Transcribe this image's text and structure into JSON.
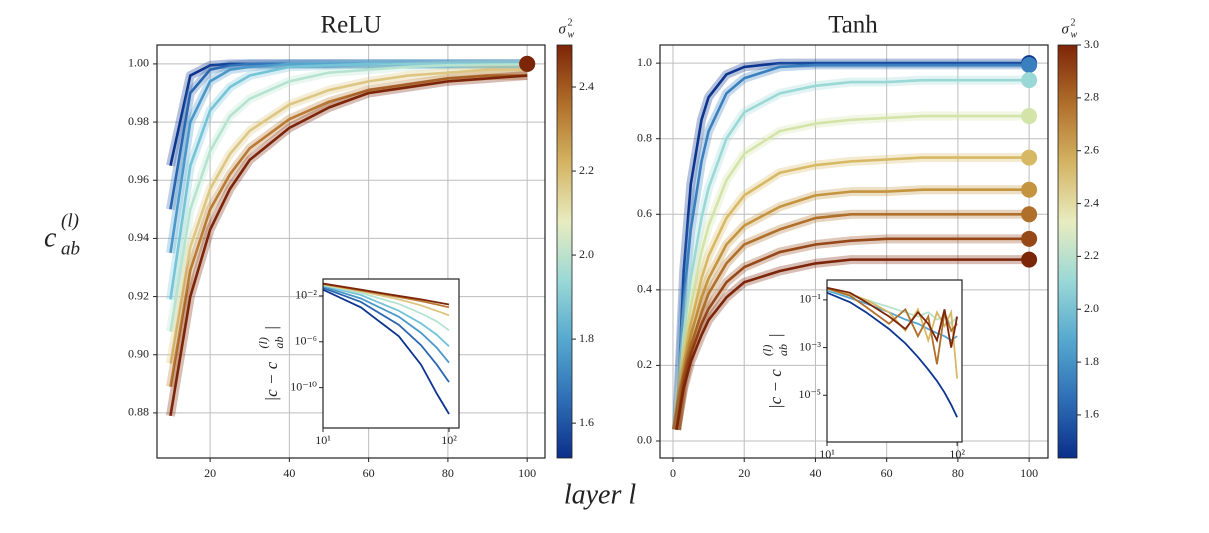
{
  "shared_labels": {
    "x_label": "layer l",
    "y_label": {
      "base": "c",
      "superscript": "(l)",
      "subscript": "ab"
    }
  },
  "chart_data": [
    {
      "type": "line",
      "title": "ReLU",
      "grid": true,
      "x": [
        10,
        15,
        20,
        25,
        30,
        40,
        50,
        60,
        70,
        80,
        90,
        100
      ],
      "xlim": [
        6.6,
        104.5
      ],
      "xticks": [
        20,
        40,
        60,
        80,
        100
      ],
      "ylim": [
        0.8645,
        1.0065
      ],
      "yticks": [
        0.88,
        {
          "value": 0.9,
          "label": "0.90"
        },
        0.92,
        0.94,
        0.96,
        0.98,
        {
          "value": 1,
          "label": "1.00"
        }
      ],
      "series": [
        {
          "color": "#0c3590",
          "values": [
            0.965,
            0.996,
            0.9995,
            1.0,
            1.0,
            1.0,
            1.0,
            1.0,
            1.0,
            1.0,
            1.0,
            1.0
          ]
        },
        {
          "color": "#2a66b0",
          "values": [
            0.95,
            0.99,
            0.998,
            0.9995,
            1.0,
            1.0,
            1.0,
            1.0,
            1.0,
            1.0,
            1.0,
            1.0
          ]
        },
        {
          "color": "#4a98c9",
          "values": [
            0.935,
            0.98,
            0.994,
            0.998,
            0.999,
            1.0,
            1.0,
            1.0,
            1.0,
            1.0,
            1.0,
            1.0
          ]
        },
        {
          "color": "#74c3d6",
          "values": [
            0.919,
            0.965,
            0.984,
            0.992,
            0.996,
            0.999,
            0.9995,
            1.0,
            1.0,
            1.0,
            1.0,
            1.0
          ]
        },
        {
          "color": "#b6e3d0",
          "values": [
            0.908,
            0.95,
            0.97,
            0.982,
            0.988,
            0.994,
            0.997,
            0.998,
            0.999,
            0.9995,
            0.9997,
            0.9998
          ]
        },
        {
          "color": "#dcc682",
          "values": [
            0.897,
            0.937,
            0.957,
            0.969,
            0.977,
            0.986,
            0.991,
            0.994,
            0.996,
            0.997,
            0.998,
            0.998
          ]
        },
        {
          "color": "#b97a34",
          "values": [
            0.889,
            0.929,
            0.95,
            0.962,
            0.971,
            0.981,
            0.987,
            0.991,
            0.993,
            0.995,
            0.996,
            0.996
          ]
        },
        {
          "color": "#7d2508",
          "values": [
            0.879,
            0.92,
            0.943,
            0.957,
            0.967,
            0.978,
            0.985,
            0.99,
            0.992,
            0.994,
            0.995,
            0.996
          ]
        }
      ],
      "markers": {
        "x": 100,
        "values": [
          1.0,
          1.0,
          1.0,
          1.0,
          1.0,
          1.0,
          1.0,
          1.0
        ]
      },
      "colorbar": {
        "label": {
          "base": "σ",
          "superscript": "2",
          "subscript": "w"
        },
        "clim": [
          1.517,
          2.5
        ],
        "ticks": [
          1.6,
          1.8,
          {
            "value": 2,
            "label": "2.0"
          },
          2.2,
          2.4
        ],
        "colormap": [
          "#0a2f8a",
          "#2f6fb5",
          "#55a8cf",
          "#9ad8d6",
          "#e8ecc0",
          "#d4b463",
          "#b06f2b",
          "#7d2508"
        ]
      },
      "inset": {
        "type": "line",
        "xscale": "log",
        "yscale": "log",
        "x": [
          10,
          20,
          40,
          60,
          80,
          100
        ],
        "xlim": [
          10,
          120
        ],
        "xticks": [
          {
            "value": 10,
            "label": "10¹"
          },
          {
            "value": 100,
            "label": "10²"
          }
        ],
        "ylim": [
          3e-14,
          0.3
        ],
        "yticks": [
          {
            "value": 0.01,
            "label": "10⁻²"
          },
          {
            "value": 1e-06,
            "label": "10⁻⁶"
          },
          {
            "value": 1e-10,
            "label": "10⁻¹⁰"
          }
        ],
        "y_label": {
          "prefix": "|c − c",
          "superscript": "(l)",
          "subscript": "ab",
          "suffix": "|"
        },
        "series": [
          {
            "color": "#0c3590",
            "values": [
              0.035,
              0.001,
              3e-06,
              1e-08,
              3e-11,
              5e-13
            ]
          },
          {
            "color": "#2a66b0",
            "values": [
              0.05,
              0.003,
              3e-05,
              5e-07,
              1e-08,
              3e-10
            ]
          },
          {
            "color": "#4a98c9",
            "values": [
              0.065,
              0.006,
              0.00015,
              6e-06,
              3e-07,
              1.5e-08
            ]
          },
          {
            "color": "#74c3d6",
            "values": [
              0.08,
              0.012,
              0.0005,
              4e-05,
              4e-06,
              4e-07
            ]
          },
          {
            "color": "#b6e3d0",
            "values": [
              0.09,
              0.018,
              0.002,
              0.0003,
              6e-05,
              1e-05
            ]
          },
          {
            "color": "#dcc682",
            "values": [
              0.1,
              0.025,
              0.005,
              0.0015,
              0.0005,
              0.0002
            ]
          },
          {
            "color": "#b97a34",
            "values": [
              0.11,
              0.03,
              0.008,
              0.0035,
              0.0018,
              0.001
            ]
          },
          {
            "color": "#7d2508",
            "values": [
              0.12,
              0.035,
              0.01,
              0.005,
              0.0028,
              0.0018
            ]
          }
        ]
      }
    },
    {
      "type": "line",
      "title": "Tanh",
      "grid": true,
      "x": [
        1,
        3,
        5,
        8,
        10,
        15,
        20,
        30,
        40,
        50,
        60,
        70,
        80,
        90,
        100
      ],
      "xlim": [
        -3.65,
        105.3
      ],
      "xticks": [
        0,
        20,
        40,
        60,
        80,
        100
      ],
      "ylim": [
        -0.045,
        1.048
      ],
      "yticks": [
        {
          "value": 0,
          "label": "0.0"
        },
        0.2,
        0.4,
        0.6,
        0.8,
        {
          "value": 1,
          "label": "1.0"
        }
      ],
      "series": [
        {
          "color": "#0c3590",
          "values": [
            0.03,
            0.45,
            0.68,
            0.85,
            0.91,
            0.97,
            0.99,
            1.0,
            1.0,
            1.0,
            1.0,
            1.0,
            1.0,
            1.0,
            1.0
          ]
        },
        {
          "color": "#3a80bf",
          "values": [
            0.03,
            0.37,
            0.56,
            0.74,
            0.82,
            0.92,
            0.96,
            0.99,
            0.995,
            0.995,
            0.995,
            0.995,
            0.995,
            0.995,
            0.995
          ]
        },
        {
          "color": "#9ad8d6",
          "values": [
            0.03,
            0.28,
            0.43,
            0.59,
            0.67,
            0.8,
            0.87,
            0.92,
            0.94,
            0.95,
            0.95,
            0.955,
            0.955,
            0.955,
            0.955
          ]
        },
        {
          "color": "#d4e4a8",
          "values": [
            0.03,
            0.23,
            0.36,
            0.5,
            0.57,
            0.69,
            0.76,
            0.82,
            0.84,
            0.85,
            0.855,
            0.86,
            0.86,
            0.86,
            0.86
          ]
        },
        {
          "color": "#d7b865",
          "values": [
            0.03,
            0.2,
            0.31,
            0.43,
            0.49,
            0.59,
            0.65,
            0.71,
            0.73,
            0.74,
            0.745,
            0.75,
            0.75,
            0.75,
            0.75
          ]
        },
        {
          "color": "#c4943f",
          "values": [
            0.03,
            0.18,
            0.28,
            0.38,
            0.43,
            0.52,
            0.57,
            0.62,
            0.65,
            0.66,
            0.66,
            0.665,
            0.665,
            0.665,
            0.665
          ]
        },
        {
          "color": "#b06f2b",
          "values": [
            0.03,
            0.17,
            0.25,
            0.34,
            0.39,
            0.47,
            0.52,
            0.56,
            0.59,
            0.6,
            0.6,
            0.6,
            0.6,
            0.6,
            0.6
          ]
        },
        {
          "color": "#964818",
          "values": [
            0.03,
            0.15,
            0.23,
            0.31,
            0.35,
            0.42,
            0.46,
            0.5,
            0.52,
            0.53,
            0.535,
            0.535,
            0.535,
            0.535,
            0.535
          ]
        },
        {
          "color": "#7d2508",
          "values": [
            0.03,
            0.14,
            0.21,
            0.28,
            0.32,
            0.38,
            0.42,
            0.45,
            0.47,
            0.48,
            0.48,
            0.48,
            0.48,
            0.48,
            0.48
          ]
        }
      ],
      "markers": {
        "x": 100,
        "values": [
          1.0,
          0.995,
          0.955,
          0.86,
          0.75,
          0.665,
          0.6,
          0.535,
          0.48
        ]
      },
      "colorbar": {
        "label": {
          "base": "σ",
          "superscript": "2",
          "subscript": "w"
        },
        "clim": [
          1.437,
          3.0
        ],
        "ticks": [
          1.6,
          1.8,
          {
            "value": 2,
            "label": "2.0"
          },
          2.2,
          2.4,
          2.6,
          2.8,
          {
            "value": 3,
            "label": "3.0"
          }
        ],
        "colormap": [
          "#0a2f8a",
          "#2f6fb5",
          "#55a8cf",
          "#9ad8d6",
          "#e8ecc0",
          "#d4b463",
          "#b06f2b",
          "#7d2508"
        ]
      },
      "inset": {
        "type": "line",
        "xscale": "log",
        "yscale": "log",
        "x": [
          10,
          15,
          20,
          30,
          40,
          50,
          60,
          70,
          80,
          90,
          100
        ],
        "xlim": [
          10,
          109
        ],
        "xticks": [
          {
            "value": 10,
            "label": "10¹"
          },
          {
            "value": 100,
            "label": "10²"
          }
        ],
        "ylim": [
          1.1e-07,
          0.68
        ],
        "yticks": [
          {
            "value": 0.1,
            "label": "10⁻¹"
          },
          {
            "value": 0.001,
            "label": "10⁻³"
          },
          {
            "value": 1e-05,
            "label": "10⁻⁵"
          }
        ],
        "y_label": {
          "prefix": "|c − c",
          "superscript": "(l)",
          "subscript": "ab",
          "suffix": "|"
        },
        "series": [
          {
            "color": "#0c3590",
            "values": [
              0.2,
              0.08,
              0.03,
              0.006,
              0.0015,
              0.0004,
              0.00012,
              4e-05,
              1.3e-05,
              4e-06,
              1.2e-06
            ]
          },
          {
            "color": "#55a8cf",
            "values": [
              0.25,
              0.12,
              0.07,
              0.03,
              0.015,
              0.01,
              0.006,
              0.004,
              0.003,
              0.002,
              0.003
            ]
          },
          {
            "color": "#b6e3d0",
            "values": [
              0.28,
              0.15,
              0.1,
              0.05,
              0.03,
              0.02,
              0.03,
              0.015,
              0.02,
              0.01,
              0.02
            ]
          },
          {
            "color": "#d7b865",
            "values": [
              0.3,
              0.18,
              0.1,
              0.03,
              0.005,
              0.04,
              0.002,
              0.03,
              0.008,
              0.03,
              5e-05
            ]
          },
          {
            "color": "#b06f2b",
            "values": [
              0.3,
              0.15,
              0.05,
              0.01,
              0.04,
              0.003,
              0.02,
              0.0002,
              0.03,
              0.005,
              0.01
            ]
          },
          {
            "color": "#7d2508",
            "values": [
              0.32,
              0.2,
              0.08,
              0.02,
              0.006,
              0.03,
              0.01,
              0.002,
              0.04,
              0.001,
              0.02
            ]
          }
        ]
      }
    }
  ]
}
